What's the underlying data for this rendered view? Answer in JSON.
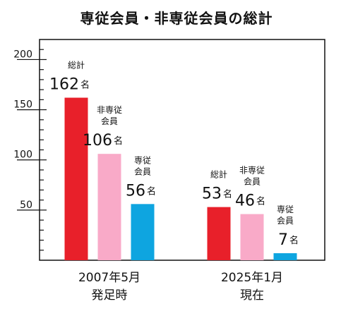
{
  "chart_data": {
    "type": "bar",
    "title": "専従会員・非専従会員の総計",
    "categories": [
      [
        "2007年5月",
        "発足時"
      ],
      [
        "2025年1月",
        "現在"
      ]
    ],
    "unit": "名",
    "ylim": [
      0,
      220
    ],
    "yticks": [
      50,
      100,
      150,
      200
    ],
    "series": [
      {
        "name": [
          "総計"
        ],
        "values": [
          162,
          53
        ],
        "color": "#e8202a"
      },
      {
        "name": [
          "非専従",
          "会員"
        ],
        "values": [
          106,
          46
        ],
        "color": "#f9aac8"
      },
      {
        "name": [
          "専従",
          "会員"
        ],
        "values": [
          56,
          7
        ],
        "color": "#0ea5e0"
      }
    ]
  }
}
